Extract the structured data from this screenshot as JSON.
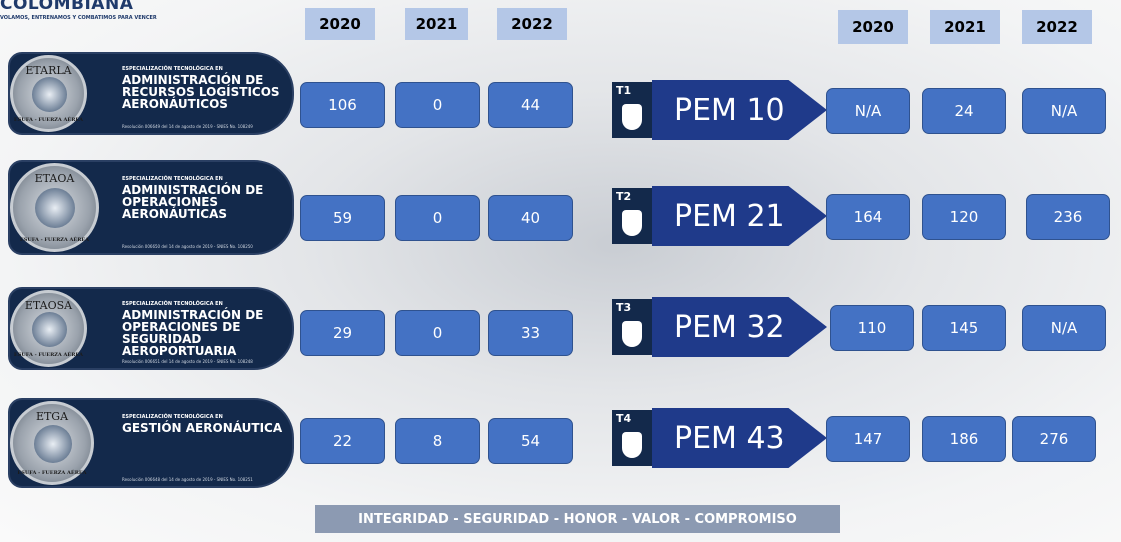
{
  "header": {
    "brand": "COLOMBIANA",
    "tagline": "VOLAMOS, ENTRENAMOS Y COMBATIMOS PARA VENCER"
  },
  "left_years": [
    "2020",
    "2021",
    "2022"
  ],
  "right_years": [
    "2020",
    "2021",
    "2022"
  ],
  "programs": [
    {
      "badge": "ETARLA",
      "badge_footer": "ESUFA - FUERZA AÉREA",
      "kicker": "ESPECIALIZACIÓN TECNOLÓGICA EN",
      "title": "ADMINISTRACIÓN DE RECURSOS LOGÍSTICOS AERONÁUTICOS",
      "resolution": "Resolución 006649 del 14 de agosto de 2019 - SNIES No. 108249",
      "values": [
        "106",
        "0",
        "44"
      ]
    },
    {
      "badge": "ETAOA",
      "badge_footer": "ESUFA - FUERZA AÉREA",
      "kicker": "ESPECIALIZACIÓN TECNOLÓGICA EN",
      "title": "ADMINISTRACIÓN DE OPERACIONES AERONÁUTICAS",
      "resolution": "Resolución 006650 del 14 de agosto de 2019 - SNIES No. 108250",
      "values": [
        "59",
        "0",
        "40"
      ]
    },
    {
      "badge": "ETAOSA",
      "badge_footer": "ESUFA - FUERZA AÉREA",
      "kicker": "ESPECIALIZACIÓN TECNOLÓGICA EN",
      "title": "ADMINISTRACIÓN DE OPERACIONES DE SEGURIDAD AEROPORTUARIA",
      "resolution": "Resolución 006651 del 14 de agosto de 2019 - SNIES No. 108248",
      "values": [
        "29",
        "0",
        "33"
      ]
    },
    {
      "badge": "ETGA",
      "badge_footer": "ESUFA - FUERZA AÉREA",
      "kicker": "ESPECIALIZACIÓN TECNOLÓGICA EN",
      "title": "GESTIÓN AERONÁUTICA",
      "resolution": "Resolución 006648 del 14 de agosto de 2019 - SNIES No. 108251",
      "values": [
        "22",
        "8",
        "54"
      ]
    }
  ],
  "pem": [
    {
      "tag": "T1",
      "label": "PEM 10",
      "values": [
        "N/A",
        "24",
        "N/A"
      ]
    },
    {
      "tag": "T2",
      "label": "PEM 21",
      "values": [
        "164",
        "120",
        "236"
      ]
    },
    {
      "tag": "T3",
      "label": "PEM 32",
      "values": [
        "110",
        "145",
        "N/A"
      ]
    },
    {
      "tag": "T4",
      "label": "PEM 43",
      "values": [
        "147",
        "186",
        "276"
      ]
    }
  ],
  "footer": "INTEGRIDAD - SEGURIDAD - HONOR - VALOR - COMPROMISO"
}
